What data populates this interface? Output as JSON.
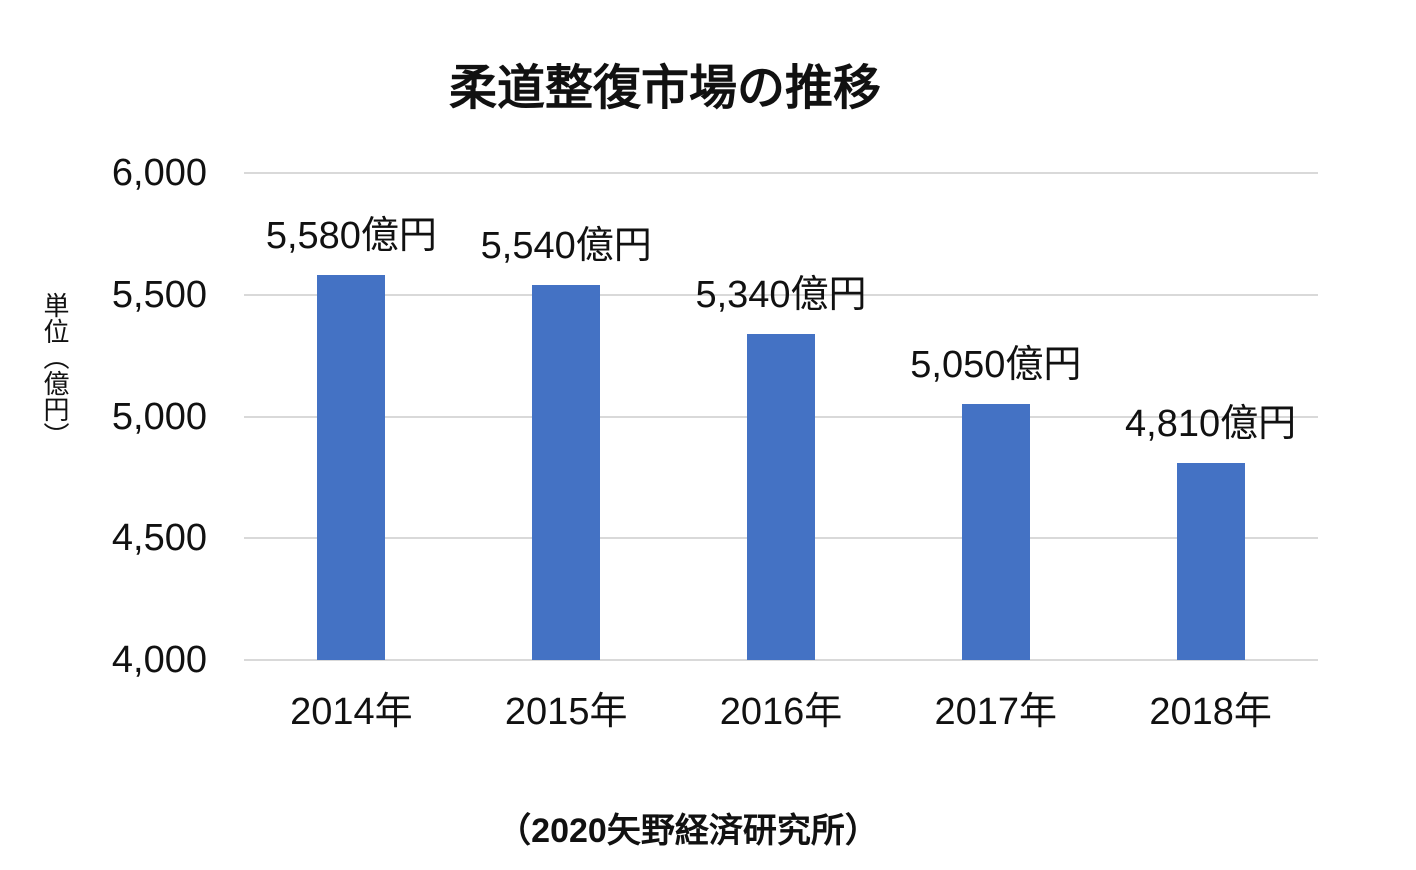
{
  "chart_data": {
    "type": "bar",
    "title": "柔道整復市場の推移",
    "ylabel": "単位（億円）",
    "source": "（2020矢野経済研究所）",
    "categories": [
      "2014年",
      "2015年",
      "2016年",
      "2017年",
      "2018年"
    ],
    "values": [
      5580,
      5540,
      5340,
      5050,
      4810
    ],
    "data_labels": [
      "5,580億円",
      "5,540億円",
      "5,340億円",
      "5,050億円",
      "4,810億円"
    ],
    "ylim": [
      4000,
      6000
    ],
    "yticks": [
      6000,
      5500,
      5000,
      4500,
      4000
    ],
    "ytick_labels": [
      "6,000",
      "5,500",
      "5,000",
      "4,500",
      "4,000"
    ],
    "grid": true,
    "legend": "none",
    "bar_color": "#4472C4",
    "gridline_color": "#D9D9D9",
    "text_color": "#111111",
    "background_color": "#FFFFFF"
  }
}
